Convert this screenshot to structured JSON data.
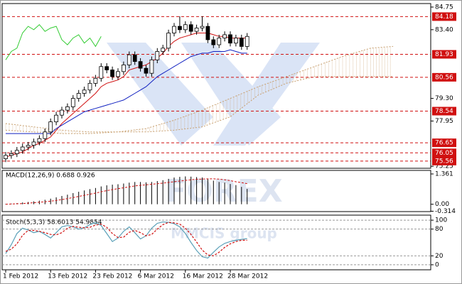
{
  "chart_data": [
    {
      "type": "candlestick",
      "open": [
        75.7,
        75.9,
        76.0,
        76.2,
        76.4,
        76.5,
        76.7,
        76.9,
        77.3,
        77.9,
        78.3,
        78.6,
        78.8,
        79.3,
        79.6,
        79.8,
        80.2,
        80.5,
        81.2,
        81.0,
        80.6,
        80.9,
        81.3,
        81.9,
        81.5,
        81.1,
        80.8,
        81.6,
        82.1,
        82.3,
        83.2,
        83.6,
        83.4,
        83.7,
        83.3,
        83.5,
        83.6,
        82.8,
        82.5,
        82.9,
        83.1,
        82.6,
        82.9,
        82.4
      ],
      "high": [
        76.1,
        76.2,
        76.4,
        76.6,
        76.7,
        76.9,
        77.1,
        77.5,
        78.1,
        78.5,
        78.8,
        79.0,
        79.5,
        79.8,
        80.0,
        80.4,
        80.7,
        81.4,
        81.4,
        81.2,
        81.1,
        81.5,
        82.1,
        82.1,
        81.7,
        81.3,
        81.8,
        82.3,
        82.5,
        83.4,
        83.8,
        84.2,
        83.9,
        83.9,
        83.7,
        84.2,
        83.8,
        83.0,
        83.1,
        83.3,
        83.3,
        83.1,
        83.1,
        83.2
      ],
      "low": [
        75.5,
        75.7,
        75.8,
        76.0,
        76.2,
        76.3,
        76.5,
        76.7,
        77.1,
        77.7,
        78.1,
        78.4,
        78.6,
        79.1,
        79.4,
        79.6,
        80.0,
        80.3,
        80.8,
        80.4,
        80.4,
        80.7,
        81.1,
        81.3,
        80.9,
        80.6,
        80.6,
        81.4,
        81.9,
        82.1,
        83.0,
        83.2,
        83.2,
        83.1,
        83.1,
        83.3,
        82.6,
        82.3,
        82.3,
        82.7,
        82.4,
        82.4,
        82.2,
        82.2
      ],
      "close": [
        75.9,
        76.0,
        76.2,
        76.4,
        76.5,
        76.7,
        76.9,
        77.3,
        77.9,
        78.3,
        78.6,
        78.8,
        79.3,
        79.6,
        79.8,
        80.2,
        80.5,
        81.2,
        81.0,
        80.6,
        80.9,
        81.3,
        81.9,
        81.5,
        81.1,
        80.8,
        81.6,
        82.1,
        82.3,
        83.2,
        83.6,
        83.4,
        83.7,
        83.3,
        83.5,
        83.6,
        82.8,
        82.5,
        82.9,
        83.1,
        82.6,
        82.9,
        82.4,
        83.0
      ],
      "lines": [
        {
          "color": "#d01010",
          "values": [
            75.8,
            75.9,
            76.0,
            76.1,
            76.3,
            76.5,
            76.6,
            76.8,
            77.0,
            77.4,
            77.8,
            78.1,
            78.4,
            78.7,
            79.0,
            79.3,
            79.6,
            80.0,
            80.2,
            80.3,
            80.4,
            80.6,
            81.0,
            81.1,
            81.2,
            81.3,
            81.5,
            81.7,
            82.0,
            82.4,
            82.7,
            82.9,
            83.0,
            83.1,
            83.2,
            83.2,
            83.2,
            83.1,
            83.0,
            83.0,
            82.9,
            82.9,
            82.9,
            82.9
          ]
        },
        {
          "color": "#1020c0",
          "values": [
            77.2,
            77.2,
            77.2,
            77.2,
            77.2,
            77.2,
            77.2,
            77.2,
            77.2,
            77.5,
            77.7,
            77.9,
            78.1,
            78.3,
            78.5,
            78.6,
            78.7,
            78.8,
            78.9,
            79.0,
            79.1,
            79.2,
            79.4,
            79.6,
            79.8,
            80.0,
            80.3,
            80.6,
            80.8,
            81.0,
            81.2,
            81.4,
            81.6,
            81.8,
            81.9,
            82.0,
            82.0,
            82.1,
            82.1,
            82.1,
            82.2,
            82.1,
            82.0,
            82.0
          ]
        },
        {
          "color": "#33cc33",
          "values": [
            81.6,
            82.1,
            82.3,
            83.2,
            83.6,
            83.4,
            83.7,
            83.3,
            83.5,
            83.6,
            82.8,
            82.5,
            82.9,
            83.1,
            82.6,
            82.9,
            82.4,
            83.0,
            null,
            null,
            null,
            null,
            null,
            null,
            null,
            null,
            null,
            null,
            null,
            null,
            null,
            null,
            null,
            null,
            null,
            null,
            null,
            null,
            null,
            null,
            null,
            null,
            null,
            null
          ]
        }
      ],
      "cloud": {
        "color": "#c8a070",
        "x": [
          0,
          5,
          10,
          15,
          20,
          25,
          30,
          35,
          40,
          45,
          50,
          55,
          60,
          65,
          69
        ],
        "span_a": [
          77.4,
          77.3,
          77.2,
          77.2,
          77.3,
          77.5,
          78.0,
          78.6,
          79.3,
          80.0,
          80.6,
          81.2,
          81.8,
          82.3,
          82.4
        ],
        "span_b": [
          77.8,
          77.6,
          77.4,
          77.3,
          77.3,
          77.3,
          77.4,
          77.6,
          78.2,
          79.5,
          80.2,
          80.6,
          80.6,
          80.6,
          80.6
        ]
      },
      "levels": [
        84.18,
        81.93,
        80.56,
        78.54,
        76.65,
        76.05,
        75.56
      ],
      "levels_color": "#d01010",
      "ylim": [
        75.13,
        84.96
      ],
      "yticks": [
        84.75,
        {
          "value": 83.4,
          "label": "83.40"
        },
        {
          "value": 79.3,
          "label": "79.30"
        },
        77.95,
        75.25
      ]
    },
    {
      "type": "macd",
      "title": "MACD(12,26,9) 0.688 0.926",
      "values": [
        0.02,
        0.03,
        0.05,
        0.08,
        0.1,
        0.13,
        0.16,
        0.2,
        0.25,
        0.31,
        0.37,
        0.43,
        0.5,
        0.56,
        0.62,
        0.68,
        0.73,
        0.8,
        0.85,
        0.88,
        0.9,
        0.93,
        0.97,
        1.0,
        1.0,
        0.98,
        1.0,
        1.04,
        1.08,
        1.14,
        1.2,
        1.23,
        1.25,
        1.24,
        1.22,
        1.2,
        1.13,
        1.06,
        1.0,
        0.97,
        0.91,
        0.86,
        0.78,
        0.688
      ],
      "signal": [
        0.0,
        0.01,
        0.02,
        0.03,
        0.05,
        0.07,
        0.09,
        0.11,
        0.14,
        0.17,
        0.21,
        0.25,
        0.3,
        0.35,
        0.4,
        0.45,
        0.5,
        0.56,
        0.61,
        0.66,
        0.7,
        0.74,
        0.78,
        0.82,
        0.85,
        0.87,
        0.9,
        0.92,
        0.95,
        0.98,
        1.01,
        1.04,
        1.07,
        1.1,
        1.12,
        1.13,
        1.14,
        1.14,
        1.13,
        1.1,
        1.06,
        1.01,
        0.97,
        0.926
      ],
      "color": "#000000",
      "signal_color": "#d01010",
      "ylim": [
        -0.33,
        1.52
      ],
      "yticks": [
        1.361,
        {
          "value": 0,
          "label": "0.00"
        },
        -0.314
      ]
    },
    {
      "type": "line",
      "title": "Stoch(5,3,3) 58.6013 54.9854",
      "series": [
        {
          "color": "#5aa0b8",
          "values": [
            25,
            45,
            70,
            82,
            78,
            72,
            75,
            68,
            60,
            72,
            85,
            88,
            85,
            80,
            83,
            90,
            95,
            88,
            70,
            52,
            60,
            75,
            85,
            72,
            58,
            65,
            82,
            93,
            96,
            95,
            92,
            85,
            70,
            50,
            32,
            18,
            15,
            28,
            40,
            48,
            52,
            55,
            57,
            58.6013
          ]
        },
        {
          "color": "#d01010",
          "dashed": true,
          "values": [
            30,
            35,
            47,
            66,
            77,
            77,
            75,
            72,
            68,
            67,
            72,
            82,
            86,
            84,
            83,
            84,
            89,
            91,
            84,
            70,
            61,
            62,
            73,
            77,
            72,
            65,
            68,
            80,
            90,
            95,
            94,
            91,
            82,
            68,
            51,
            33,
            22,
            20,
            28,
            39,
            47,
            52,
            55,
            54.9854
          ]
        }
      ],
      "ylim": [
        -11.3,
        111.3
      ],
      "yticks": [
        100,
        80,
        20,
        0
      ],
      "grid": true,
      "xticks": [
        {
          "value": 0,
          "label": "1 Feb 2012"
        },
        {
          "value": 8,
          "label": "13 Feb 2012"
        },
        {
          "value": 16,
          "label": "23 Feb 2012"
        },
        {
          "value": 24,
          "label": "6 Mar 2012"
        },
        {
          "value": 32,
          "label": "16 Mar 2012"
        },
        {
          "value": 40,
          "label": "28 Mar 2012"
        }
      ]
    }
  ],
  "watermark": {
    "brand": "FOREX",
    "sub": "MMCIS group"
  }
}
